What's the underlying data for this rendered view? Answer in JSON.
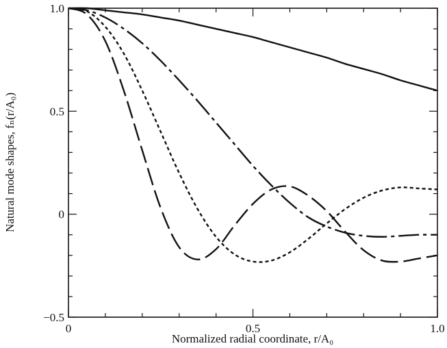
{
  "chart_data": {
    "type": "line",
    "title": "",
    "xlabel": "Normalized radial coordinate, r/A₀",
    "ylabel": "Natural mode shapes, fₙ(r/A₀)",
    "xlim": [
      0,
      1.0
    ],
    "ylim": [
      -0.5,
      1.0
    ],
    "grid": false,
    "legend": "none",
    "x_ticks": [
      {
        "value": 0,
        "label": "0"
      },
      {
        "value": 0.5,
        "label": "0.5"
      },
      {
        "value": 1.0,
        "label": "1.0"
      }
    ],
    "y_ticks": [
      {
        "value": -0.5,
        "label": "−0.5"
      },
      {
        "value": 0,
        "label": "0"
      },
      {
        "value": 0.5,
        "label": "0.5"
      },
      {
        "value": 1.0,
        "label": "1.0"
      }
    ],
    "x_minor_step": 0.1,
    "y_minor_step": 0.1,
    "x": [
      0,
      0.05,
      0.1,
      0.15,
      0.2,
      0.25,
      0.3,
      0.35,
      0.4,
      0.45,
      0.5,
      0.55,
      0.6,
      0.65,
      0.7,
      0.75,
      0.8,
      0.85,
      0.9,
      0.95,
      1.0
    ],
    "series": [
      {
        "line_style": "solid",
        "color": "#111111",
        "values": [
          1.0,
          1.0,
          0.99,
          0.98,
          0.97,
          0.955,
          0.94,
          0.92,
          0.9,
          0.88,
          0.86,
          0.835,
          0.81,
          0.785,
          0.76,
          0.73,
          0.705,
          0.68,
          0.65,
          0.625,
          0.6
        ]
      },
      {
        "line_style": "dashdot",
        "color": "#111111",
        "values": [
          1.0,
          0.99,
          0.955,
          0.9,
          0.83,
          0.745,
          0.65,
          0.55,
          0.445,
          0.34,
          0.235,
          0.14,
          0.055,
          -0.015,
          -0.06,
          -0.09,
          -0.105,
          -0.11,
          -0.105,
          -0.1,
          -0.1
        ]
      },
      {
        "line_style": "dotted",
        "color": "#111111",
        "values": [
          1.0,
          0.985,
          0.91,
          0.78,
          0.6,
          0.4,
          0.2,
          0.025,
          -0.11,
          -0.195,
          -0.23,
          -0.225,
          -0.185,
          -0.12,
          -0.045,
          0.025,
          0.08,
          0.115,
          0.13,
          0.125,
          0.12
        ]
      },
      {
        "line_style": "longdash",
        "color": "#111111",
        "values": [
          1.0,
          0.97,
          0.84,
          0.6,
          0.31,
          0.03,
          -0.16,
          -0.22,
          -0.17,
          -0.055,
          0.05,
          0.12,
          0.135,
          0.09,
          0.015,
          -0.085,
          -0.175,
          -0.225,
          -0.23,
          -0.215,
          -0.2
        ]
      }
    ]
  }
}
